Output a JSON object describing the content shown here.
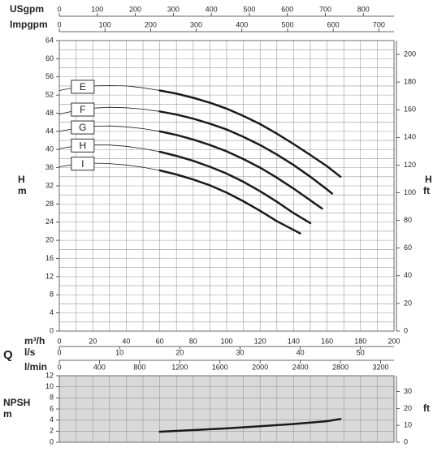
{
  "chart_data": [
    {
      "type": "line",
      "ylabel": "H",
      "ylabel_unit": "m",
      "y2label": "H",
      "y2label_unit": "ft",
      "xlabel": "m³/h",
      "flow_label": "Q",
      "xlim": [
        0,
        200
      ],
      "xticks": [
        0,
        20,
        40,
        60,
        80,
        100,
        120,
        140,
        160,
        180,
        200
      ],
      "ylim": [
        0,
        64
      ],
      "yticks": [
        0,
        4,
        8,
        12,
        16,
        20,
        24,
        28,
        32,
        36,
        40,
        44,
        48,
        52,
        56,
        60,
        64
      ],
      "y2lim": [
        0,
        210
      ],
      "y2ticks": [
        0,
        20,
        40,
        60,
        80,
        100,
        120,
        140,
        160,
        180,
        200
      ],
      "minor_x_grid": true,
      "minor_y_grid": true,
      "background": "#ffffff",
      "thick_from_x": 60,
      "top_axes": [
        {
          "label": "USgpm",
          "xlim": [
            0,
            880.6
          ],
          "xticks": [
            0,
            100,
            200,
            300,
            400,
            500,
            600,
            700,
            800
          ]
        },
        {
          "label": "Impgpm",
          "xlim": [
            0,
            733.2
          ],
          "xticks": [
            0,
            100,
            200,
            300,
            400,
            500,
            600,
            700
          ]
        }
      ],
      "bottom_axes": [
        {
          "label": "l/s",
          "xlim": [
            0,
            55.56
          ],
          "xticks": [
            0,
            10,
            20,
            30,
            40,
            50
          ]
        },
        {
          "label": "l/min",
          "xlim": [
            0,
            3333.3
          ],
          "xticks": [
            0,
            400,
            800,
            1200,
            1600,
            2000,
            2400,
            2800,
            3200
          ]
        }
      ],
      "series": [
        {
          "name": "E",
          "color": "#1a1a1a",
          "x": [
            0,
            10,
            20,
            30,
            40,
            50,
            60,
            70,
            80,
            90,
            100,
            110,
            120,
            130,
            140,
            150,
            160,
            168
          ],
          "values": [
            53,
            53.7,
            54,
            54.1,
            54,
            53.6,
            53,
            52.3,
            51.4,
            50.3,
            49,
            47.4,
            45.6,
            43.5,
            41.2,
            38.8,
            36.3,
            34
          ]
        },
        {
          "name": "F",
          "color": "#1a1a1a",
          "x": [
            0,
            10,
            20,
            30,
            40,
            50,
            60,
            70,
            80,
            90,
            100,
            110,
            120,
            130,
            140,
            150,
            160,
            163
          ],
          "values": [
            47.8,
            48.6,
            49.1,
            49.3,
            49.2,
            48.9,
            48.4,
            47.7,
            46.8,
            45.7,
            44.4,
            42.8,
            41,
            38.9,
            36.6,
            34,
            31.2,
            30.3
          ]
        },
        {
          "name": "G",
          "color": "#1a1a1a",
          "x": [
            0,
            10,
            20,
            30,
            40,
            50,
            60,
            70,
            80,
            90,
            100,
            110,
            120,
            130,
            140,
            150,
            157
          ],
          "values": [
            44,
            44.7,
            45.1,
            45.2,
            45,
            44.6,
            44,
            43.2,
            42.2,
            41,
            39.6,
            37.9,
            36,
            33.8,
            31.4,
            28.8,
            27
          ]
        },
        {
          "name": "H",
          "color": "#1a1a1a",
          "x": [
            0,
            10,
            20,
            30,
            40,
            50,
            60,
            70,
            80,
            90,
            100,
            110,
            120,
            130,
            140,
            150
          ],
          "values": [
            40.2,
            40.8,
            41,
            41,
            40.7,
            40.2,
            39.5,
            38.6,
            37.5,
            36.2,
            34.7,
            32.9,
            30.8,
            28.5,
            26,
            23.8
          ]
        },
        {
          "name": "I",
          "color": "#1a1a1a",
          "x": [
            0,
            10,
            20,
            30,
            40,
            50,
            60,
            70,
            80,
            90,
            100,
            110,
            120,
            130,
            140,
            144
          ],
          "values": [
            36.2,
            36.8,
            37,
            36.9,
            36.6,
            36.1,
            35.4,
            34.5,
            33.4,
            32.1,
            30.5,
            28.6,
            26.5,
            24.2,
            22.3,
            21.5
          ]
        }
      ]
    },
    {
      "type": "line",
      "ylabel": "NPSH",
      "ylabel_unit": "m",
      "y2label": "ft",
      "xlim": [
        0,
        200
      ],
      "ylim": [
        0,
        12
      ],
      "yticks": [
        0,
        2,
        4,
        6,
        8,
        10,
        12
      ],
      "y2lim": [
        0,
        39.4
      ],
      "y2ticks": [
        0,
        10,
        20,
        30
      ],
      "minor_x_grid": true,
      "minor_y_grid": false,
      "background": "#d9d9d9",
      "series": [
        {
          "color": "#1a1a1a",
          "x": [
            60,
            80,
            100,
            120,
            140,
            160,
            168
          ],
          "values": [
            1.9,
            2.2,
            2.5,
            2.9,
            3.3,
            3.8,
            4.2
          ]
        }
      ]
    }
  ]
}
